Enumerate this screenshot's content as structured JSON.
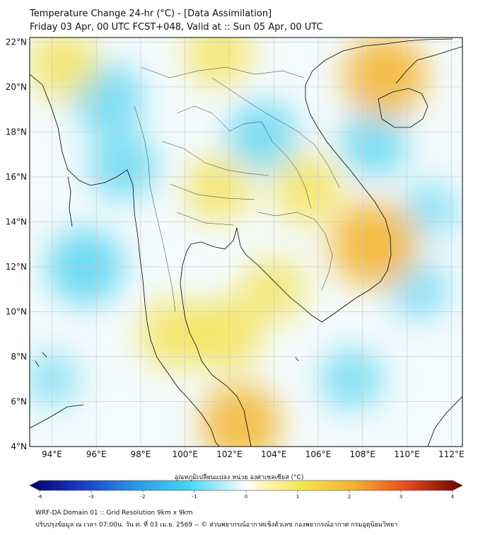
{
  "header": {
    "title_line1": "Temperature Change 24-hr (°C) - [Data Assimilation]",
    "title_line2": "Friday 03 Apr, 00 UTC FCST+048, Valid at :: Sun 05 Apr, 00 UTC"
  },
  "map": {
    "lat_labels": [
      "22°N",
      "20°N",
      "18°N",
      "16°N",
      "14°N",
      "12°N",
      "10°N",
      "8°N",
      "6°N",
      "4°N"
    ],
    "lon_labels": [
      "94°E",
      "96°E",
      "98°E",
      "100°E",
      "102°E",
      "104°E",
      "106°E",
      "108°E",
      "110°E",
      "112°E"
    ],
    "lat_range": [
      4,
      22.2
    ],
    "lon_range": [
      93,
      112.5
    ],
    "colors": {
      "cool": "#4fd3f0",
      "neutral": "#ffffff",
      "warm": "#f5e14a",
      "hot": "#f5b836",
      "coast": "#000000"
    },
    "anomalies": [
      {
        "lon": 96.5,
        "lat": 19.5,
        "value": -1.0
      },
      {
        "lon": 95.5,
        "lat": 12.0,
        "value": -1.2
      },
      {
        "lon": 97.2,
        "lat": 16.5,
        "value": -0.9
      },
      {
        "lon": 103.5,
        "lat": 17.8,
        "value": -1.0
      },
      {
        "lon": 108.5,
        "lat": 17.5,
        "value": -0.9
      },
      {
        "lon": 110.5,
        "lat": 11.0,
        "value": -0.6
      },
      {
        "lon": 107.5,
        "lat": 7.0,
        "value": -0.7
      },
      {
        "lon": 111.0,
        "lat": 14.5,
        "value": -0.5
      },
      {
        "lon": 94.0,
        "lat": 7.0,
        "value": -0.4
      },
      {
        "lon": 101.5,
        "lat": 21.5,
        "value": 0.9
      },
      {
        "lon": 109.0,
        "lat": 20.5,
        "value": 1.5
      },
      {
        "lon": 94.5,
        "lat": 21.0,
        "value": 1.0
      },
      {
        "lon": 108.5,
        "lat": 13.0,
        "value": 1.6
      },
      {
        "lon": 101.5,
        "lat": 15.5,
        "value": 0.9
      },
      {
        "lon": 105.5,
        "lat": 15.5,
        "value": 1.0
      },
      {
        "lon": 99.5,
        "lat": 9.0,
        "value": 1.0
      },
      {
        "lon": 102.5,
        "lat": 5.0,
        "value": 1.4
      },
      {
        "lon": 101.8,
        "lat": 9.0,
        "value": 1.1
      },
      {
        "lon": 104.0,
        "lat": 11.0,
        "value": 0.8
      }
    ]
  },
  "colorbar": {
    "title": "อุณหภูมิเปลี่ยนแปลง หน่วย องศาเซลเซียส (°C)",
    "ticks": [
      "-4",
      "-3",
      "-2",
      "-1",
      "0",
      "1",
      "2",
      "3",
      "4"
    ],
    "range": [
      -4,
      4
    ]
  },
  "footer": {
    "line1": "WRF-DA Domain 01 :: Grid Resolution 9km x 9km",
    "line2": "ปรับปรุงข้อมูล ณ เวลา 07:00น. วัน ศ. ที่ 03 เม.ย. 2569 -- © ส่วนพยากรณ์อากาศเชิงตัวเลข กองพยากรณ์อากาศ กรมอุตุนิยมวิทยา"
  }
}
